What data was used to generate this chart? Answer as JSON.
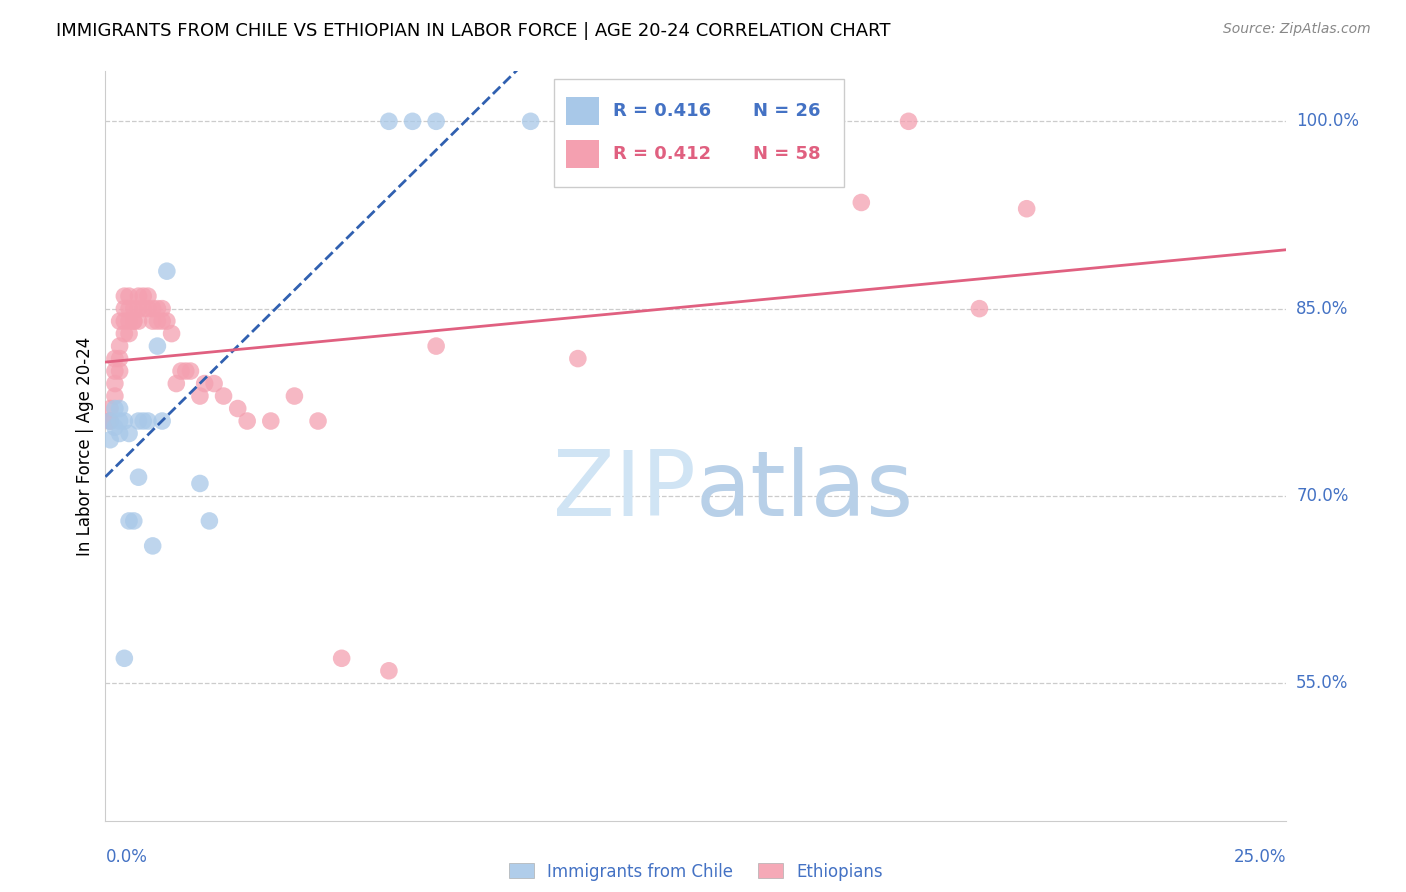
{
  "title": "IMMIGRANTS FROM CHILE VS ETHIOPIAN IN LABOR FORCE | AGE 20-24 CORRELATION CHART",
  "source": "Source: ZipAtlas.com",
  "ylabel": "In Labor Force | Age 20-24",
  "ytick_vals": [
    0.55,
    0.7,
    0.85,
    1.0
  ],
  "ytick_labels": [
    "55.0%",
    "70.0%",
    "85.0%",
    "100.0%"
  ],
  "xtick_left": "0.0%",
  "xtick_right": "25.0%",
  "xmin": 0.0,
  "xmax": 0.25,
  "ymin": 0.44,
  "ymax": 1.04,
  "chile_r": "0.416",
  "chile_n": "26",
  "eth_r": "0.412",
  "eth_n": "58",
  "chile_dot_color": "#a8c8e8",
  "eth_dot_color": "#f4a0b0",
  "chile_line_color": "#3060b0",
  "eth_line_color": "#e06080",
  "grid_color": "#cccccc",
  "axis_label_color": "#4472C4",
  "watermark_color": "#d0e4f4",
  "chile_x": [
    0.001,
    0.001,
    0.002,
    0.002,
    0.003,
    0.003,
    0.003,
    0.004,
    0.004,
    0.005,
    0.005,
    0.006,
    0.007,
    0.007,
    0.008,
    0.009,
    0.01,
    0.011,
    0.012,
    0.013,
    0.02,
    0.022,
    0.06,
    0.065,
    0.07,
    0.09
  ],
  "chile_y": [
    0.76,
    0.745,
    0.77,
    0.755,
    0.76,
    0.75,
    0.77,
    0.57,
    0.76,
    0.75,
    0.68,
    0.68,
    0.715,
    0.76,
    0.76,
    0.76,
    0.66,
    0.82,
    0.76,
    0.88,
    0.71,
    0.68,
    1.0,
    1.0,
    1.0,
    1.0
  ],
  "eth_x": [
    0.001,
    0.001,
    0.001,
    0.002,
    0.002,
    0.002,
    0.002,
    0.003,
    0.003,
    0.003,
    0.003,
    0.004,
    0.004,
    0.004,
    0.004,
    0.005,
    0.005,
    0.005,
    0.005,
    0.006,
    0.006,
    0.006,
    0.007,
    0.007,
    0.007,
    0.008,
    0.008,
    0.009,
    0.009,
    0.01,
    0.01,
    0.011,
    0.011,
    0.012,
    0.012,
    0.013,
    0.014,
    0.015,
    0.016,
    0.017,
    0.018,
    0.02,
    0.021,
    0.023,
    0.025,
    0.028,
    0.03,
    0.035,
    0.04,
    0.045,
    0.05,
    0.06,
    0.07,
    0.1,
    0.16,
    0.17,
    0.185,
    0.195
  ],
  "eth_y": [
    0.76,
    0.77,
    0.76,
    0.78,
    0.79,
    0.8,
    0.81,
    0.8,
    0.81,
    0.82,
    0.84,
    0.83,
    0.84,
    0.85,
    0.86,
    0.84,
    0.85,
    0.86,
    0.83,
    0.84,
    0.85,
    0.84,
    0.84,
    0.85,
    0.86,
    0.85,
    0.86,
    0.85,
    0.86,
    0.84,
    0.85,
    0.85,
    0.84,
    0.84,
    0.85,
    0.84,
    0.83,
    0.79,
    0.8,
    0.8,
    0.8,
    0.78,
    0.79,
    0.79,
    0.78,
    0.77,
    0.76,
    0.76,
    0.78,
    0.76,
    0.57,
    0.56,
    0.82,
    0.81,
    0.935,
    1.0,
    0.85,
    0.93
  ]
}
